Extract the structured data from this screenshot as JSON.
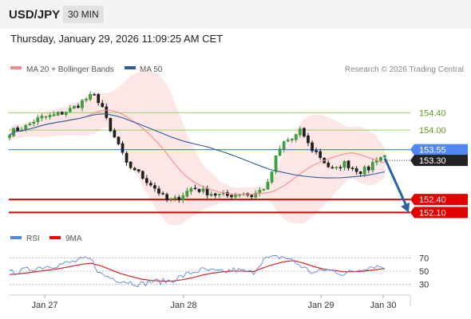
{
  "header": {
    "symbol": "USD/JPY",
    "interval": "30 MIN",
    "datetime": "Thursday, January 29, 2026 11:09:25 AM CET"
  },
  "colors": {
    "bollinger": "#f08c8c",
    "ma50": "#2f5b9c",
    "rsi": "#5b86d8",
    "rsi_ma": "#dd1111",
    "green_level": "#9acd6a",
    "green_text": "#5a9e1e",
    "blue_level": "#4f86f0",
    "red_level": "#e00000",
    "last_price_bg": "#222222",
    "arrow": "#2a62a8"
  },
  "chart_data": {
    "type": "candlestick",
    "legend": [
      {
        "name": "MA 20 + Bollinger Bands",
        "color": "#f08c8c"
      },
      {
        "name": "MA 50",
        "color": "#2f5b9c"
      }
    ],
    "credit": "Research © 2026 Trading Central",
    "ylim": [
      151.85,
      154.95
    ],
    "levels": [
      {
        "value": 154.4,
        "label": "154.40",
        "style": "green"
      },
      {
        "value": 154.0,
        "label": "154.00",
        "style": "green"
      },
      {
        "value": 153.55,
        "label": "153.55",
        "style": "blue"
      },
      {
        "value": 152.4,
        "label": "152.40",
        "style": "red"
      },
      {
        "value": 152.1,
        "label": "152.10",
        "style": "red"
      }
    ],
    "last_price": {
      "value": 153.3,
      "label": "153.30"
    },
    "projection": {
      "from": 153.35,
      "to": 152.1
    },
    "x_labels": [
      "Jan 27",
      "Jan 28",
      "Jan 29",
      "Jan 30"
    ],
    "close_path": [
      153.95,
      154.02,
      154.08,
      154.22,
      154.3,
      154.32,
      154.38,
      154.45,
      154.55,
      154.7,
      154.8,
      154.62,
      153.98,
      153.7,
      153.2,
      153.1,
      152.9,
      152.75,
      152.55,
      152.35,
      152.4,
      152.55,
      152.68,
      152.6,
      152.55,
      152.5,
      152.48,
      152.52,
      152.55,
      152.48,
      152.6,
      152.75,
      153.4,
      153.75,
      153.8,
      154.0,
      153.6,
      153.45,
      153.2,
      153.05,
      153.25,
      153.15,
      153.05,
      153.1,
      153.35,
      153.4
    ],
    "rsi_panel": {
      "legend": [
        {
          "name": "RSI",
          "color": "#5b86d8"
        },
        {
          "name": "9MA",
          "color": "#dd1111"
        }
      ],
      "ylim": [
        20,
        80
      ],
      "ticks": [
        70,
        50,
        30
      ],
      "rsi_path": [
        47,
        50,
        53,
        56,
        58,
        60,
        63,
        67,
        68,
        45,
        40,
        36,
        33,
        30,
        35,
        34,
        36,
        42,
        48,
        52,
        50,
        48,
        52,
        50,
        47,
        68,
        70,
        72,
        65,
        55,
        47,
        52,
        50,
        46,
        50,
        55,
        58,
        56
      ],
      "ma_path": [
        45,
        46,
        48,
        50,
        52,
        54,
        57,
        60,
        62,
        58,
        52,
        46,
        42,
        38,
        36,
        35,
        35,
        37,
        40,
        44,
        47,
        49,
        50,
        50,
        49,
        55,
        60,
        64,
        66,
        62,
        57,
        53,
        51,
        49,
        49,
        50,
        52,
        54
      ]
    }
  }
}
